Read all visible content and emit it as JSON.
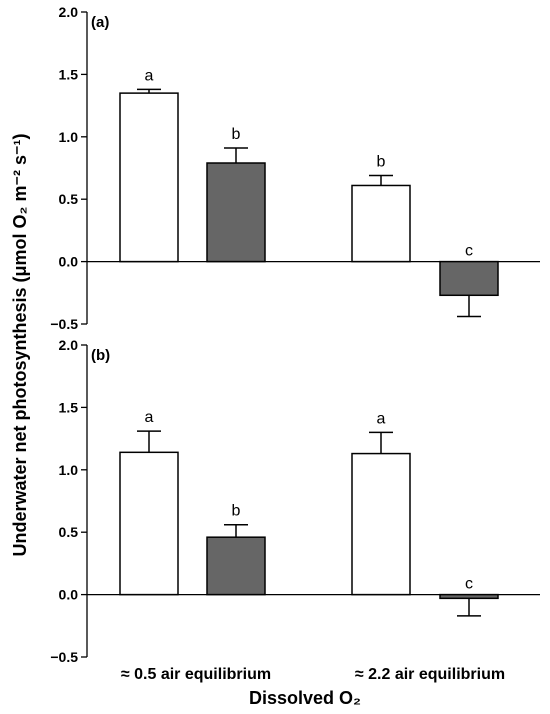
{
  "chart_data": {
    "type": "bar",
    "ylabel": "Underwater net photosynthesis (μmol O₂ m⁻² s⁻¹)",
    "xlabel": "Dissolved O₂",
    "categories": [
      "≈ 0.5 air equilibrium",
      "≈ 2.2 air equilibrium"
    ],
    "ylim": [
      -0.5,
      2.0
    ],
    "yticks": [
      "2.0",
      "1.5",
      "1.0",
      "0.5",
      "0.0",
      "−0.5"
    ],
    "colors": {
      "open": "#ffffff",
      "filled": "#666666",
      "stroke": "#000000"
    },
    "panels": [
      {
        "label": "(a)",
        "bars": [
          {
            "category": 0,
            "fill": "open",
            "value": 1.35,
            "error": 0.03,
            "sig": "a"
          },
          {
            "category": 0,
            "fill": "filled",
            "value": 0.79,
            "error": 0.12,
            "sig": "b"
          },
          {
            "category": 1,
            "fill": "open",
            "value": 0.61,
            "error": 0.08,
            "sig": "b"
          },
          {
            "category": 1,
            "fill": "filled",
            "value": -0.27,
            "error": 0.17,
            "sig": "c"
          }
        ]
      },
      {
        "label": "(b)",
        "bars": [
          {
            "category": 0,
            "fill": "open",
            "value": 1.14,
            "error": 0.17,
            "sig": "a"
          },
          {
            "category": 0,
            "fill": "filled",
            "value": 0.46,
            "error": 0.1,
            "sig": "b"
          },
          {
            "category": 1,
            "fill": "open",
            "value": 1.13,
            "error": 0.17,
            "sig": "a"
          },
          {
            "category": 1,
            "fill": "filled",
            "value": -0.03,
            "error": 0.14,
            "sig": "c"
          }
        ]
      }
    ]
  }
}
